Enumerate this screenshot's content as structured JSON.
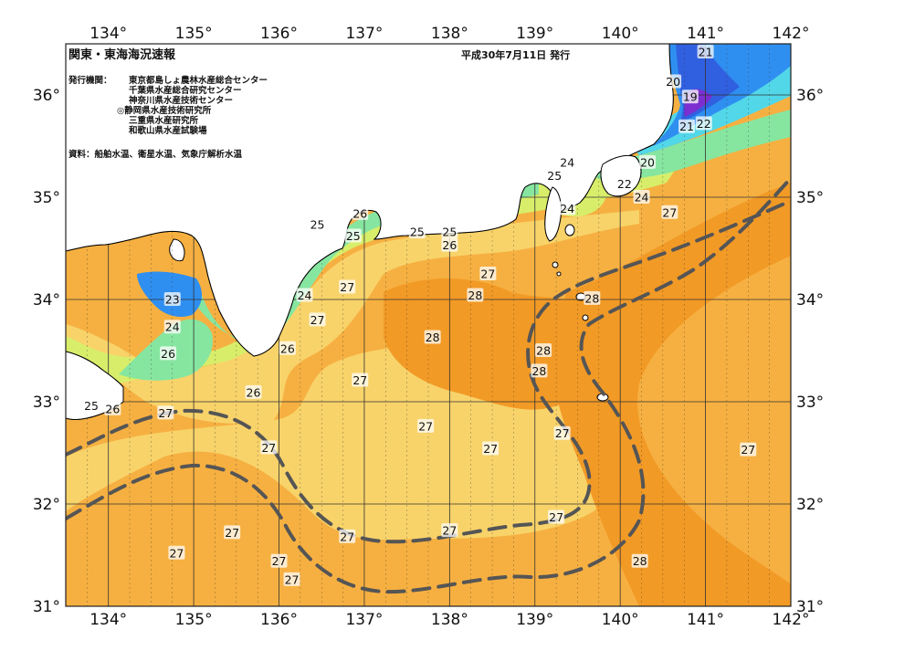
{
  "title": "関東・東海海況速報",
  "issued": "平成30年7月11日 発行",
  "publisher_label": "発行機関：",
  "publishers": [
    "東京都島しょ農林水産総合センター",
    "千葉県水産総合研究センター",
    "神奈川県水産技術センター",
    "◎静岡県水産技術研究所",
    "三重県水産研究所",
    "和歌山県水産試験場"
  ],
  "source": "資料：船舶水温、衛星水温、気象庁解析水温",
  "axes": {
    "lon_labels": [
      "134°",
      "135°",
      "136°",
      "137°",
      "138°",
      "139°",
      "140°",
      "141°",
      "142°"
    ],
    "lon_values": [
      134,
      135,
      136,
      137,
      138,
      139,
      140,
      141,
      142
    ],
    "lat_labels": [
      "36°",
      "35°",
      "34°",
      "33°",
      "32°",
      "31°"
    ],
    "lat_values": [
      36,
      35,
      34,
      33,
      32,
      31
    ],
    "lon_range": [
      133.5,
      142
    ],
    "lat_range": [
      31,
      36.5
    ]
  },
  "colors": {
    "sea_27": "#f6b041",
    "sea_28": "#f29a26",
    "sea_26": "#f8d36a",
    "sea_25": "#d8ee6a",
    "sea_24": "#86e6a0",
    "sea_22": "#52d7e8",
    "sea_21": "#2f8ff0",
    "sea_20": "#3060e0",
    "sea_19": "#7b2fd0",
    "land": "#ffffff",
    "kuroshio_axis": "#555555"
  },
  "contour_labels": [
    {
      "text": "21",
      "lon": 141.0,
      "lat": 36.42
    },
    {
      "text": "20",
      "lon": 140.62,
      "lat": 36.13
    },
    {
      "text": "19",
      "lon": 140.82,
      "lat": 35.98
    },
    {
      "text": "22",
      "lon": 140.98,
      "lat": 35.72
    },
    {
      "text": "21",
      "lon": 140.78,
      "lat": 35.69
    },
    {
      "text": "20",
      "lon": 140.32,
      "lat": 35.34
    },
    {
      "text": "24",
      "lon": 139.38,
      "lat": 35.34
    },
    {
      "text": "25",
      "lon": 139.23,
      "lat": 35.21
    },
    {
      "text": "22",
      "lon": 140.05,
      "lat": 35.13
    },
    {
      "text": "24",
      "lon": 140.25,
      "lat": 35.0
    },
    {
      "text": "24",
      "lon": 139.38,
      "lat": 34.89
    },
    {
      "text": "27",
      "lon": 140.58,
      "lat": 34.85
    },
    {
      "text": "26",
      "lon": 136.95,
      "lat": 34.84
    },
    {
      "text": "25",
      "lon": 136.45,
      "lat": 34.73
    },
    {
      "text": "25",
      "lon": 136.87,
      "lat": 34.62
    },
    {
      "text": "25",
      "lon": 137.62,
      "lat": 34.66
    },
    {
      "text": "25",
      "lon": 138.0,
      "lat": 34.66
    },
    {
      "text": "26",
      "lon": 138.0,
      "lat": 34.53
    },
    {
      "text": "27",
      "lon": 138.45,
      "lat": 34.25
    },
    {
      "text": "28",
      "lon": 138.3,
      "lat": 34.04
    },
    {
      "text": "28",
      "lon": 139.67,
      "lat": 34.01
    },
    {
      "text": "27",
      "lon": 136.8,
      "lat": 34.12
    },
    {
      "text": "24",
      "lon": 136.3,
      "lat": 34.04
    },
    {
      "text": "23",
      "lon": 134.75,
      "lat": 34.0
    },
    {
      "text": "27",
      "lon": 136.45,
      "lat": 33.8
    },
    {
      "text": "24",
      "lon": 134.75,
      "lat": 33.73
    },
    {
      "text": "28",
      "lon": 137.8,
      "lat": 33.63
    },
    {
      "text": "26",
      "lon": 134.7,
      "lat": 33.47
    },
    {
      "text": "26",
      "lon": 136.1,
      "lat": 33.52
    },
    {
      "text": "28",
      "lon": 139.1,
      "lat": 33.5
    },
    {
      "text": "28",
      "lon": 139.05,
      "lat": 33.3
    },
    {
      "text": "27",
      "lon": 136.95,
      "lat": 33.21
    },
    {
      "text": "26",
      "lon": 135.7,
      "lat": 33.09
    },
    {
      "text": "25",
      "lon": 133.8,
      "lat": 32.96
    },
    {
      "text": "26",
      "lon": 134.05,
      "lat": 32.93
    },
    {
      "text": "27",
      "lon": 134.67,
      "lat": 32.89
    },
    {
      "text": "27",
      "lon": 137.72,
      "lat": 32.76
    },
    {
      "text": "27",
      "lon": 139.32,
      "lat": 32.69
    },
    {
      "text": "27",
      "lon": 135.88,
      "lat": 32.55
    },
    {
      "text": "27",
      "lon": 138.48,
      "lat": 32.54
    },
    {
      "text": "27",
      "lon": 141.5,
      "lat": 32.53
    },
    {
      "text": "27",
      "lon": 139.25,
      "lat": 31.87
    },
    {
      "text": "27",
      "lon": 135.45,
      "lat": 31.72
    },
    {
      "text": "27",
      "lon": 136.8,
      "lat": 31.68
    },
    {
      "text": "27",
      "lon": 138.0,
      "lat": 31.74
    },
    {
      "text": "27",
      "lon": 134.8,
      "lat": 31.52
    },
    {
      "text": "27",
      "lon": 136.0,
      "lat": 31.44
    },
    {
      "text": "28",
      "lon": 140.23,
      "lat": 31.44
    },
    {
      "text": "27",
      "lon": 136.15,
      "lat": 31.26
    }
  ]
}
